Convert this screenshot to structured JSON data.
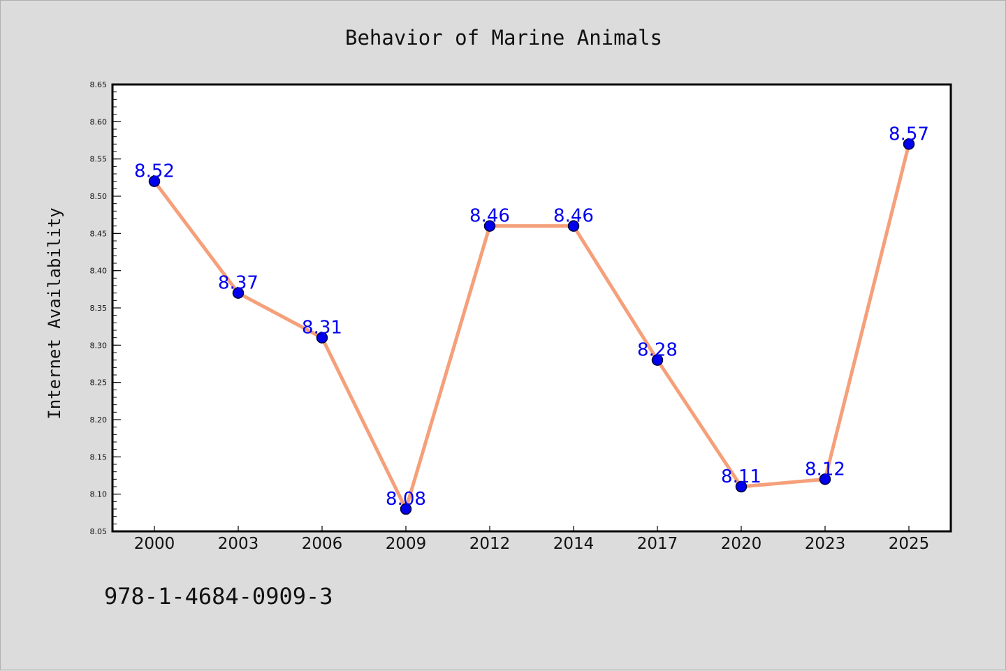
{
  "chart_data": {
    "type": "line",
    "title": "Behavior of Marine Animals",
    "xlabel": "",
    "ylabel": "Internet Availability",
    "categories": [
      "2000",
      "2003",
      "2006",
      "2009",
      "2012",
      "2014",
      "2017",
      "2020",
      "2023",
      "2025"
    ],
    "values": [
      8.52,
      8.37,
      8.31,
      8.08,
      8.46,
      8.46,
      8.28,
      8.11,
      8.12,
      8.57
    ],
    "data_labels": [
      "8.52",
      "8.37",
      "8.31",
      "8.08",
      "8.46",
      "8.46",
      "8.28",
      "8.11",
      "8.12",
      "8.57"
    ],
    "ylim": [
      8.05,
      8.65
    ],
    "yticks": [
      "8.05",
      "8.10",
      "8.15",
      "8.20",
      "8.25",
      "8.30",
      "8.35",
      "8.40",
      "8.45",
      "8.50",
      "8.55",
      "8.60",
      "8.65"
    ],
    "grid": false,
    "legend": "none",
    "colors": {
      "line": "#f5a07a",
      "marker": "#0000ee",
      "marker_edge": "#000033",
      "data_label": "#0000ee",
      "plot_background": "#ffffff",
      "figure_background": "#dcdcdc"
    }
  },
  "footer": {
    "isbn": "978-1-4684-0909-3"
  }
}
